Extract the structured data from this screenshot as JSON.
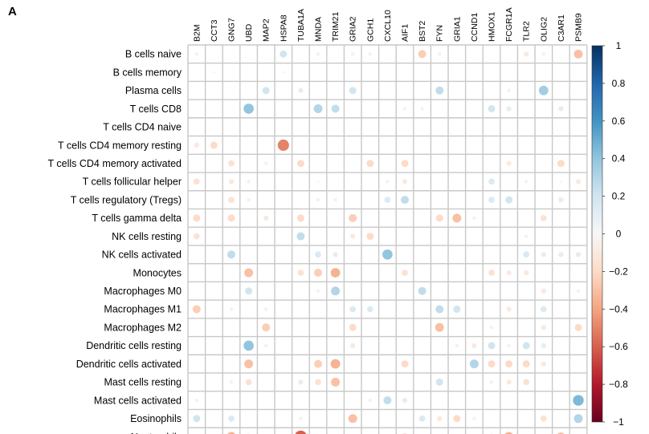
{
  "panel_label": "A",
  "chart_data": {
    "type": "heatmap",
    "style": "correlation-circle-matrix",
    "columns": [
      "B2M",
      "CCT3",
      "GNG7",
      "UBD",
      "MAP2",
      "HSPA8",
      "TUBA1A",
      "MNDA",
      "TRIM21",
      "GRIA2",
      "GCH1",
      "CXCL10",
      "AIF1",
      "BST2",
      "FYN",
      "GRIA1",
      "CCND1",
      "HMOX1",
      "FCGR1A",
      "TLR2",
      "OLIG2",
      "C3AR1",
      "PSMB9"
    ],
    "rows": [
      "B cells naive",
      "B cells memory",
      "Plasma cells",
      "T cells CD8",
      "T cells CD4 naive",
      "T cells CD4 memory resting",
      "T cells CD4 memory activated",
      "T cells follicular helper",
      "T cells regulatory (Tregs)",
      "T cells gamma delta",
      "NK cells resting",
      "NK cells activated",
      "Monocytes",
      "Macrophages M0",
      "Macrophages M1",
      "Macrophages M2",
      "Dendritic cells resting",
      "Dendritic cells activated",
      "Mast cells resting",
      "Mast cells activated",
      "Eosinophils",
      "Neutrophils"
    ],
    "values": [
      [
        -0.05,
        0,
        0,
        0,
        0,
        0.2,
        0,
        -0.05,
        0,
        0.05,
        0.05,
        0,
        0,
        -0.25,
        0.05,
        0,
        0,
        0,
        0,
        -0.1,
        0.05,
        0,
        -0.3
      ],
      [
        0,
        0.02,
        0,
        0,
        0,
        0.02,
        0,
        0,
        0,
        0,
        0,
        0,
        0,
        0,
        0,
        0,
        0,
        0,
        0,
        0,
        0,
        0,
        0
      ],
      [
        0,
        0,
        0,
        0,
        0.2,
        0,
        0.1,
        0,
        0,
        0.2,
        0,
        0,
        0,
        0,
        0.25,
        0,
        0,
        0,
        0.05,
        0,
        0.35,
        0,
        0
      ],
      [
        0,
        0,
        0,
        0.4,
        0,
        0,
        0,
        0.3,
        0.25,
        0,
        0,
        0,
        0.05,
        0.05,
        0,
        0,
        0,
        0.2,
        0.1,
        0,
        0,
        0.1,
        0
      ],
      [
        0,
        0,
        0,
        0,
        0,
        0,
        0,
        0,
        0,
        0,
        0,
        0,
        0,
        0,
        0,
        0,
        0,
        0,
        0,
        0,
        0,
        0,
        0
      ],
      [
        -0.1,
        -0.2,
        0,
        0,
        0,
        -0.5,
        0,
        0,
        0,
        0,
        0,
        0,
        0,
        0,
        0,
        0,
        0,
        0,
        0,
        0,
        0,
        0,
        0
      ],
      [
        0,
        0,
        -0.15,
        0,
        -0.05,
        0,
        -0.2,
        0,
        0,
        0,
        -0.2,
        0,
        -0.2,
        0,
        0,
        0,
        0,
        0,
        -0.1,
        0,
        0,
        -0.2,
        0
      ],
      [
        -0.15,
        0,
        -0.1,
        0.05,
        0,
        0,
        0,
        -0.02,
        0,
        0,
        0,
        -0.05,
        -0.1,
        0,
        0,
        0,
        0,
        0.15,
        0,
        0.05,
        0,
        -0.02,
        -0.1
      ],
      [
        0,
        0,
        -0.15,
        0.05,
        0,
        0,
        0,
        -0.05,
        0.05,
        0,
        0,
        0.15,
        0.25,
        0,
        0,
        0,
        0,
        0.15,
        0.2,
        0,
        0,
        0.1,
        0
      ],
      [
        -0.2,
        0,
        -0.2,
        0,
        -0.1,
        0,
        -0.2,
        0,
        0,
        -0.25,
        0,
        0,
        0,
        0,
        -0.2,
        -0.3,
        0.05,
        0,
        0,
        0,
        -0.15,
        0,
        0
      ],
      [
        -0.15,
        0,
        0,
        0,
        0,
        0,
        0.25,
        0,
        0,
        -0.1,
        -0.2,
        0,
        0,
        0,
        0,
        0,
        0,
        0,
        0,
        -0.05,
        0,
        0,
        0
      ],
      [
        0,
        0,
        0.25,
        0,
        0,
        0,
        0,
        0.15,
        0.1,
        0,
        0,
        0.4,
        0,
        0,
        0,
        0,
        0,
        0,
        0,
        0.15,
        0.1,
        0.1,
        0.1
      ],
      [
        0,
        0,
        0,
        -0.3,
        0,
        0,
        -0.15,
        -0.25,
        -0.35,
        0,
        0,
        0,
        -0.15,
        0,
        0,
        0,
        0,
        -0.15,
        -0.1,
        -0.1,
        0,
        0,
        0
      ],
      [
        0,
        0,
        0,
        0.2,
        0,
        0,
        0,
        0.05,
        0.3,
        0,
        0,
        0,
        0,
        0.25,
        0,
        0,
        0,
        0,
        0,
        0,
        -0.1,
        0,
        -0.05
      ],
      [
        -0.25,
        0,
        0.05,
        0,
        0.05,
        0,
        0,
        0,
        0,
        0.15,
        0.15,
        0,
        0,
        0,
        0.25,
        0.2,
        0,
        0,
        -0.1,
        0,
        0.15,
        0,
        0
      ],
      [
        0,
        0,
        0,
        0,
        -0.25,
        0,
        0,
        0,
        0,
        -0.2,
        0,
        0,
        0,
        0,
        -0.3,
        0,
        0,
        0.05,
        0,
        0,
        -0.1,
        0,
        -0.2
      ],
      [
        0,
        0,
        0,
        0.4,
        -0.05,
        0,
        0,
        0,
        0,
        -0.1,
        0,
        0,
        0,
        0,
        0,
        0.05,
        -0.1,
        0.2,
        0.05,
        0.2,
        0.1,
        0,
        0
      ],
      [
        0,
        0,
        0,
        -0.3,
        0,
        0,
        0,
        -0.25,
        -0.35,
        0,
        0,
        0,
        -0.2,
        0,
        0,
        0,
        0.3,
        -0.2,
        -0.2,
        -0.2,
        -0.1,
        0,
        0
      ],
      [
        0,
        0,
        0.05,
        -0.15,
        0,
        0,
        0.1,
        -0.15,
        -0.3,
        0,
        0,
        0,
        0,
        0,
        0.2,
        0,
        0,
        0.05,
        -0.1,
        -0.15,
        0,
        0,
        0
      ],
      [
        0.05,
        0,
        0,
        0,
        0,
        0,
        0,
        0,
        0,
        0,
        -0.05,
        0.25,
        0.1,
        0,
        0,
        0,
        0,
        0,
        0,
        0,
        0,
        0,
        0.45
      ],
      [
        0.2,
        0,
        0.15,
        0,
        0,
        0,
        0.05,
        0,
        0,
        -0.3,
        0,
        0,
        0,
        0.15,
        -0.1,
        -0.2,
        -0.05,
        0,
        0,
        0,
        -0.15,
        0,
        0.3
      ],
      [
        0,
        0,
        -0.35,
        -0.15,
        0,
        0,
        -0.6,
        -0.1,
        -0.05,
        -0.1,
        0,
        0,
        -0.2,
        0,
        0,
        0,
        0,
        -0.15,
        -0.35,
        -0.05,
        0,
        -0.3,
        0
      ]
    ],
    "colorbar": {
      "range": [
        -1,
        1
      ],
      "ticks": [
        "1",
        "0.8",
        "0.6",
        "0.4",
        "0.2",
        "0",
        "−0.2",
        "−0.4",
        "−0.6",
        "−0.8",
        "−1"
      ]
    },
    "colors": {
      "positive": "#2166ac",
      "negative": "#b2182b",
      "neutral": "#f7f7f7"
    },
    "grid": true
  }
}
